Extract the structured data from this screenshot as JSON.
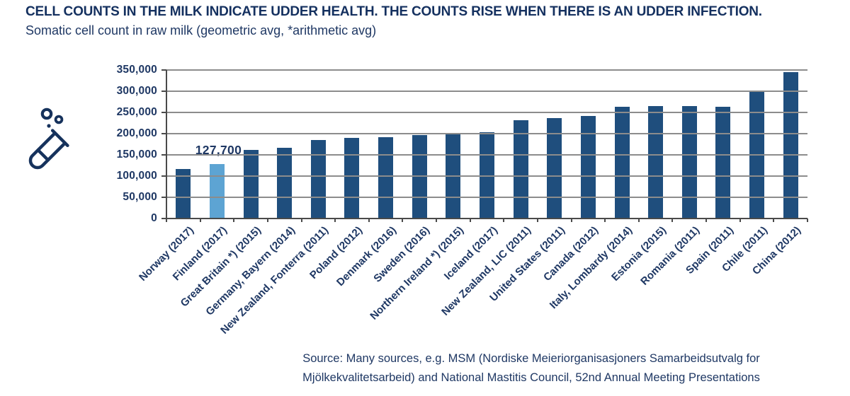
{
  "header": {
    "title": "CELL COUNTS IN THE MILK INDICATE UDDER HEALTH. THE COUNTS RISE WHEN THERE IS AN UDDER INFECTION.",
    "subtitle": "Somatic cell count in raw milk (geometric avg, *arithmetic avg)"
  },
  "icon": {
    "name": "test-tube-with-cells-icon",
    "color": "#16325c"
  },
  "chart_data": {
    "type": "bar",
    "categories": [
      "Norway (2017)",
      "Finland (2017)",
      "Great Britain *) (2015)",
      "Germany, Bayern (2014)",
      "New Zealand, Fonterra (2011)",
      "Poland (2012)",
      "Denmark (2016)",
      "Sweden (2016)",
      "Northern Ireland *) (2015)",
      "Iceland (2017)",
      "New Zealand, LIC (2011)",
      "United States (2011)",
      "Canada (2012)",
      "Italy, Lombardy (2014)",
      "Estonia (2015)",
      "Romania (2011)",
      "Spain (2011)",
      "Chile (2011)",
      "China (2012)"
    ],
    "values": [
      117000,
      127700,
      161000,
      166000,
      185000,
      190000,
      192000,
      197000,
      200000,
      204000,
      231000,
      236000,
      241000,
      263000,
      265000,
      265000,
      264000,
      300000,
      345000
    ],
    "highlight": {
      "index": 1,
      "label": "127,700"
    },
    "ylim": [
      0,
      350000
    ],
    "ytick_step": 50000,
    "ytick_labels": [
      "0",
      "50,000",
      "100,000",
      "150,000",
      "200,000",
      "250,000",
      "300,000",
      "350,000"
    ],
    "grid": true,
    "legend": "none",
    "bar_color": "#1f4e7d",
    "highlight_color": "#5da4d3",
    "gridline_color": "#8c8c8c",
    "axis_color": "#4a4a4a",
    "label_color": "#1f3864"
  },
  "source": {
    "line1": "Source: Many sources, e.g. MSM (Nordiske Meieriorganisasjoners Samarbeidsutvalg for",
    "line2": "Mjölkekvalitetsarbeid) and National Mastitis Council, 52nd Annual Meeting Presentations"
  }
}
